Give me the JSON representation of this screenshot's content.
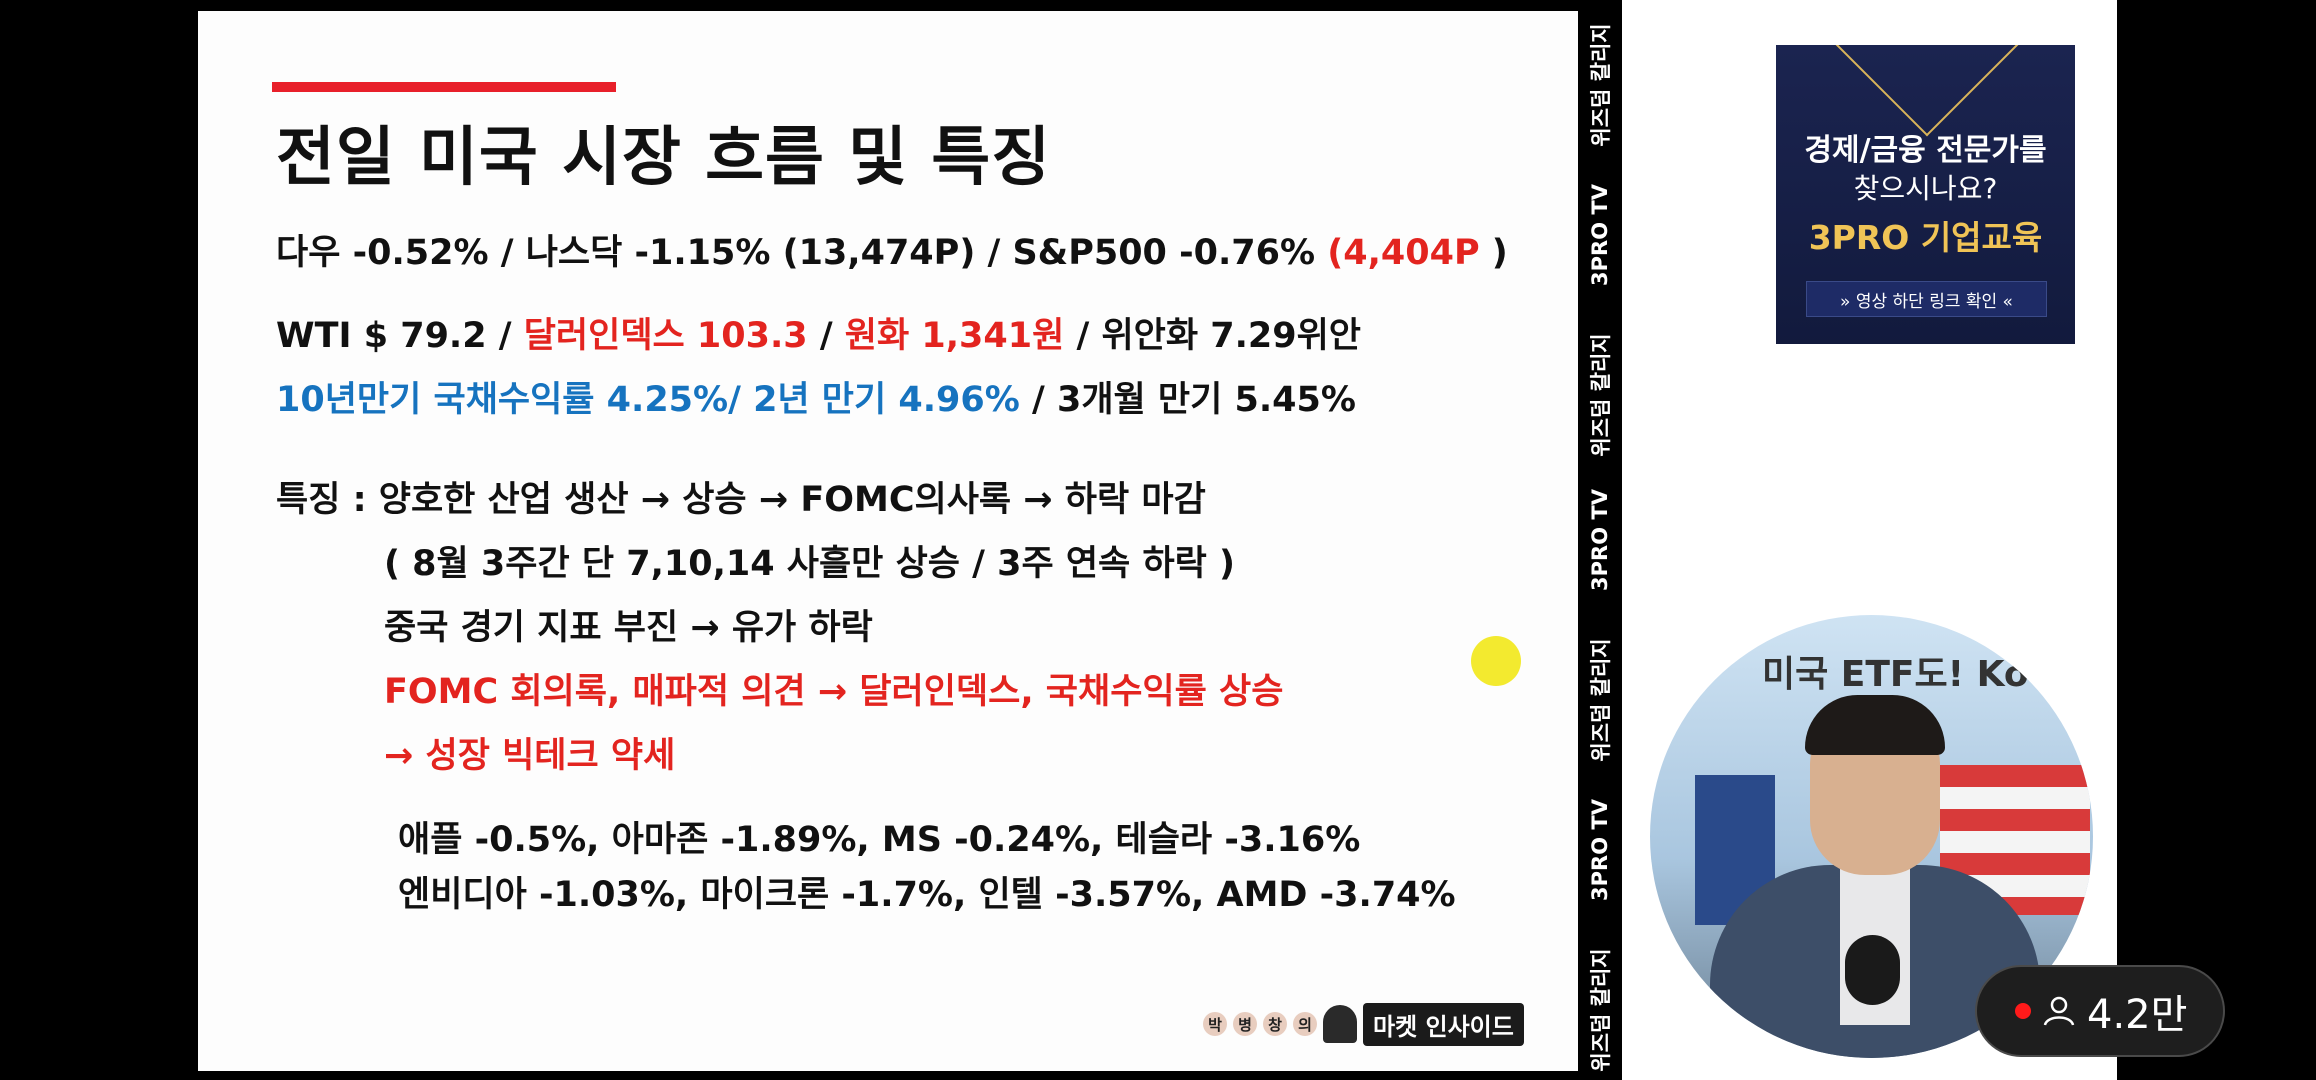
{
  "slide": {
    "title": "전일 미국 시장 흐름 및 특징",
    "line1": {
      "a": "다우 -0.52% / 나스닥 -1.15% (13,474P) / S&P500 -0.76% ",
      "b": "(4,404P",
      "c": " )"
    },
    "line2": {
      "a": "WTI $ 79.2 / ",
      "b": "달러인덱스 103.3",
      "c": " / ",
      "d": "원화 1,341원",
      "e": " / 위안화 7.29위안"
    },
    "line3": {
      "a": "10년만기 국채수익률 4.25%/ 2년 만기 4.96%",
      "b": " / 3개월 만기 5.45%"
    },
    "line4": "특징 : 양호한 산업 생산 → 상승 → FOMC의사록 → 하락 마감",
    "line5": "( 8월 3주간 단 7,10,14 사흘만 상승 / 3주 연속 하락 )",
    "line6": "중국 경기 지표 부진 → 유가 하락",
    "line7": "FOMC 회의록, 매파적 의견 → 달러인덱스, 국채수익률 상승",
    "line8": "→ 성장 빅테크 약세",
    "line9": "애플 -0.5%, 아마존 -1.89%, MS -0.24%, 테슬라 -3.16%",
    "line10": "엔비디아 -1.03%, 마이크론 -1.7%, 인텔 -3.57%, AMD -3.74%",
    "watermark": {
      "b1": "박",
      "b2": "병",
      "b3": "창",
      "b4": "의",
      "text": "마켓 인사이드"
    }
  },
  "vertical_strip": [
    "위즈덤 칼리지",
    "3PRO TV",
    "위즈덤 칼리지",
    "3PRO TV",
    "위즈덤 칼리지",
    "3PRO TV",
    "위즈덤 칼리지"
  ],
  "ad": {
    "line1": "경제/금융 전문가를",
    "line2": "찾으시나요?",
    "line3": "3PRO 기업교육",
    "button": "» 영상 하단 링크 확인 «"
  },
  "camera": {
    "backdrop_text": "미국 ETF도! Kod"
  },
  "viewers": {
    "count": "4.2만"
  },
  "colors": {
    "red": "#e3241f",
    "blue": "#1673bf",
    "highlight": "#f3ea2f"
  }
}
